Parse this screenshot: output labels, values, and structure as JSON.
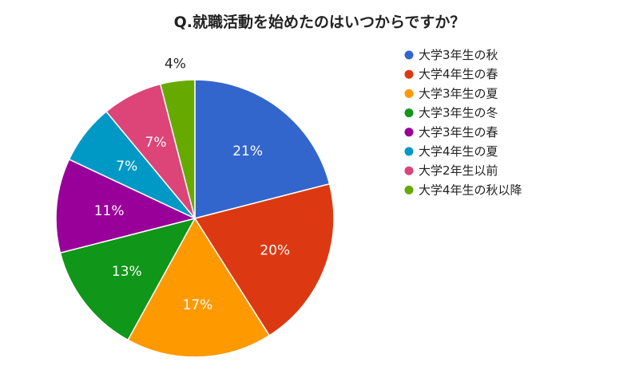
{
  "chart_data": {
    "type": "pie",
    "title": "Q.就職活動を始めたのはいつからですか？",
    "legend_position": "right",
    "slices": [
      {
        "label": "大学3年生の秋",
        "value": 21,
        "display": "21%",
        "color": "#3366cc"
      },
      {
        "label": "大学4年生の春",
        "value": 20,
        "display": "20%",
        "color": "#dc3912"
      },
      {
        "label": "大学3年生の夏",
        "value": 17,
        "display": "17%",
        "color": "#ff9900"
      },
      {
        "label": "大学3年生の冬",
        "value": 13,
        "display": "13%",
        "color": "#109618"
      },
      {
        "label": "大学3年生の春",
        "value": 11,
        "display": "11%",
        "color": "#990099"
      },
      {
        "label": "大学4年生の夏",
        "value": 7,
        "display": "7%",
        "color": "#0099c6"
      },
      {
        "label": "大学2年生以前",
        "value": 7,
        "display": "7%",
        "color": "#dd4477"
      },
      {
        "label": "大学4年生の秋以降",
        "value": 4,
        "display": "4%",
        "color": "#66aa00"
      }
    ]
  }
}
